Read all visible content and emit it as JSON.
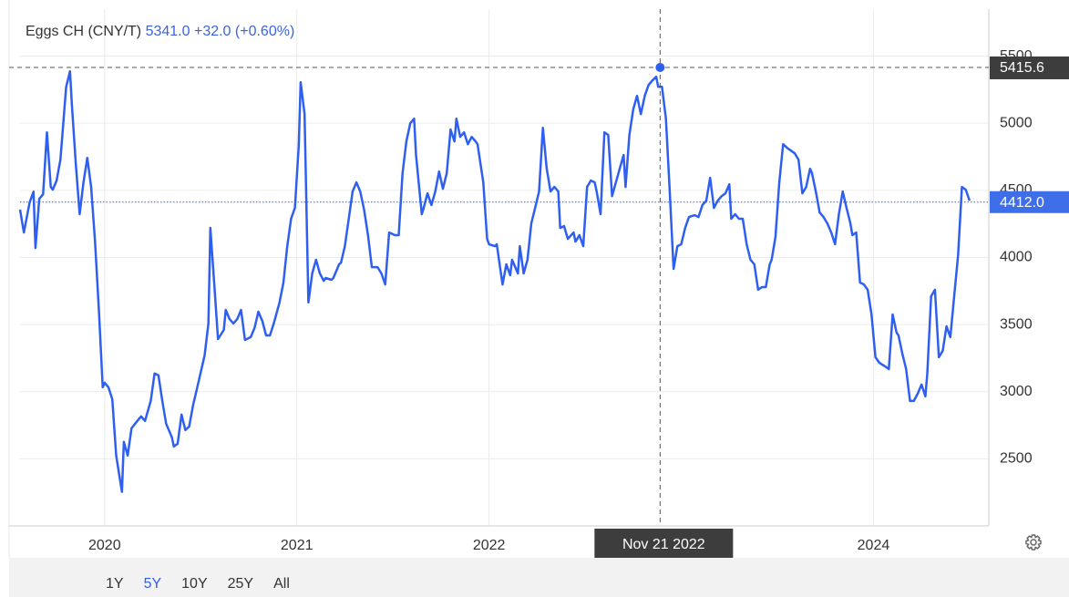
{
  "chart_data": {
    "type": "line",
    "title": "Eggs CH (CNY/T)",
    "quote": {
      "value": 5341,
      "label": "5341.0"
    },
    "change": "+32.0 (+0.60%)",
    "color": "#2f5ff0",
    "x": [
      2019.56,
      2019.58,
      2019.61,
      2019.63,
      2019.64,
      2019.66,
      2019.68,
      2019.7,
      2019.72,
      2019.73,
      2019.75,
      2019.77,
      2019.8,
      2019.82,
      2019.83,
      2019.85,
      2019.87,
      2019.89,
      2019.91,
      2019.93,
      2019.95,
      2019.97,
      2019.99,
      2020.0,
      2020.02,
      2020.04,
      2020.06,
      2020.09,
      2020.1,
      2020.12,
      2020.14,
      2020.17,
      2020.19,
      2020.21,
      2020.24,
      2020.26,
      2020.28,
      2020.3,
      2020.32,
      2020.35,
      2020.36,
      2020.38,
      2020.4,
      2020.42,
      2020.44,
      2020.46,
      2020.49,
      2020.52,
      2020.54,
      2020.55,
      2020.57,
      2020.59,
      2020.62,
      2020.63,
      2020.65,
      2020.67,
      2020.69,
      2020.71,
      2020.73,
      2020.76,
      2020.78,
      2020.8,
      2020.82,
      2020.84,
      2020.86,
      2020.88,
      2020.91,
      2020.93,
      2020.95,
      2020.97,
      2020.99,
      2021.01,
      2021.02,
      2021.04,
      2021.06,
      2021.08,
      2021.1,
      2021.12,
      2021.14,
      2021.15,
      2021.18,
      2021.19,
      2021.22,
      2021.23,
      2021.25,
      2021.27,
      2021.29,
      2021.31,
      2021.33,
      2021.35,
      2021.37,
      2021.39,
      2021.42,
      2021.44,
      2021.46,
      2021.48,
      2021.51,
      2021.53,
      2021.55,
      2021.57,
      2021.59,
      2021.61,
      2021.62,
      2021.65,
      2021.66,
      2021.68,
      2021.7,
      2021.72,
      2021.74,
      2021.76,
      2021.78,
      2021.8,
      2021.82,
      2021.83,
      2021.85,
      2021.87,
      2021.89,
      2021.91,
      2021.93,
      2021.94,
      2021.97,
      2021.99,
      2022.0,
      2022.03,
      2022.04,
      2022.07,
      2022.09,
      2022.11,
      2022.12,
      2022.15,
      2022.16,
      2022.18,
      2022.2,
      2022.22,
      2022.24,
      2022.26,
      2022.28,
      2022.3,
      2022.32,
      2022.34,
      2022.36,
      2022.37,
      2022.39,
      2022.41,
      2022.44,
      2022.45,
      2022.47,
      2022.49,
      2022.51,
      2022.53,
      2022.55,
      2022.56,
      2022.58,
      2022.6,
      2022.62,
      2022.64,
      2022.66,
      2022.68,
      2022.7,
      2022.71,
      2022.73,
      2022.75,
      2022.77,
      2022.79,
      2022.81,
      2022.83,
      2022.85,
      2022.87,
      2022.88,
      2022.9,
      2022.92,
      2022.94,
      2022.96,
      2022.98,
      2023.0,
      2023.02,
      2023.04,
      2023.07,
      2023.09,
      2023.11,
      2023.13,
      2023.15,
      2023.17,
      2023.19,
      2023.21,
      2023.23,
      2023.25,
      2023.26,
      2023.28,
      2023.3,
      2023.32,
      2023.34,
      2023.36,
      2023.38,
      2023.4,
      2023.42,
      2023.44,
      2023.46,
      2023.47,
      2023.49,
      2023.51,
      2023.53,
      2023.55,
      2023.57,
      2023.59,
      2023.61,
      2023.63,
      2023.65,
      2023.67,
      2023.68,
      2023.7,
      2023.72,
      2023.74,
      2023.76,
      2023.78,
      2023.8,
      2023.82,
      2023.84,
      2023.86,
      2023.88,
      2023.89,
      2023.91,
      2023.93,
      2023.95,
      2023.97,
      2023.99,
      2024.01,
      2024.03,
      2024.06,
      2024.08,
      2024.1,
      2024.12,
      2024.13,
      2024.15,
      2024.17,
      2024.19,
      2024.21,
      2024.23,
      2024.25,
      2024.27,
      2024.28,
      2024.3,
      2024.32,
      2024.34,
      2024.36,
      2024.38,
      2024.4,
      2024.42,
      2024.44,
      2024.46,
      2024.48,
      2024.5
    ],
    "values": [
      4356,
      4186,
      4410,
      4490,
      4070,
      4437,
      4470,
      4932,
      4525,
      4505,
      4573,
      4729,
      5271,
      5387,
      5136,
      4695,
      4322,
      4559,
      4742,
      4525,
      4118,
      3609,
      3033,
      3067,
      3033,
      2944,
      2524,
      2253,
      2626,
      2524,
      2727,
      2782,
      2816,
      2782,
      2931,
      3135,
      3121,
      2931,
      2761,
      2660,
      2592,
      2612,
      2829,
      2714,
      2741,
      2897,
      3080,
      3270,
      3508,
      4220,
      3813,
      3392,
      3460,
      3609,
      3541,
      3508,
      3541,
      3609,
      3385,
      3406,
      3474,
      3596,
      3528,
      3419,
      3419,
      3508,
      3664,
      3813,
      4084,
      4288,
      4369,
      4830,
      5305,
      5068,
      3664,
      3881,
      3983,
      3881,
      3826,
      3847,
      3833,
      3847,
      3949,
      3962,
      4084,
      4288,
      4491,
      4559,
      4491,
      4356,
      4166,
      3928,
      3928,
      3881,
      3799,
      4186,
      4166,
      4166,
      4627,
      4864,
      5000,
      5034,
      4763,
      4322,
      4369,
      4478,
      4390,
      4491,
      4640,
      4512,
      4627,
      4953,
      4864,
      5034,
      4898,
      4932,
      4844,
      4898,
      4864,
      4844,
      4559,
      4138,
      4098,
      4084,
      4098,
      3799,
      3949,
      3867,
      3983,
      3881,
      4084,
      3881,
      3983,
      4254,
      4369,
      4491,
      4966,
      4661,
      4491,
      4525,
      4491,
      4220,
      4234,
      4138,
      4186,
      4118,
      4166,
      4084,
      4525,
      4573,
      4559,
      4491,
      4322,
      4932,
      4912,
      4457,
      4559,
      4661,
      4763,
      4525,
      4912,
      5102,
      5204,
      5068,
      5204,
      5285,
      5319,
      5346,
      5271,
      5271,
      5034,
      4491,
      3915,
      4084,
      4098,
      4220,
      4301,
      4315,
      4301,
      4390,
      4423,
      4593,
      4369,
      4423,
      4457,
      4478,
      4545,
      4288,
      4322,
      4288,
      4288,
      4098,
      3983,
      3949,
      3759,
      3779,
      3779,
      3949,
      3983,
      4152,
      4559,
      4844,
      4817,
      4796,
      4776,
      4729,
      4478,
      4525,
      4661,
      4627,
      4491,
      4335,
      4301,
      4254,
      4186,
      4098,
      4322,
      4491,
      4369,
      4254,
      4166,
      4186,
      3813,
      3799,
      3759,
      3575,
      3257,
      3216,
      3189,
      3168,
      3575,
      3440,
      3419,
      3284,
      3168,
      2931,
      2931,
      2985,
      3053,
      2965,
      3135,
      3711,
      3759,
      3257,
      3304,
      3487,
      3406,
      3711,
      4016,
      4525,
      4505,
      4423
    ],
    "xlim": [
      2019.56,
      2024.6
    ],
    "ylim": [
      2000,
      5850
    ],
    "xticks": [
      2020,
      2021,
      2022,
      2024
    ],
    "yticks": [
      2500,
      3000,
      3500,
      4000,
      4500,
      5000,
      5500
    ],
    "grid": true,
    "last_price": {
      "value": 4412,
      "label": "4412.0"
    },
    "crosshair": {
      "x": 2022.89,
      "x_label": "Nov 21 2022",
      "value": 5415.6
    },
    "ranges": [
      "1Y",
      "5Y",
      "10Y",
      "25Y",
      "All"
    ],
    "active_range": "5Y"
  }
}
